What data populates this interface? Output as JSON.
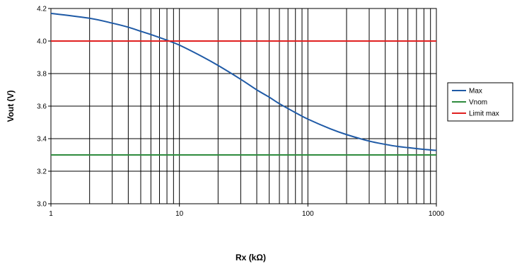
{
  "chart_data": {
    "type": "line",
    "xlabel": "Rx (kΩ)",
    "ylabel": "Vout (V)",
    "xscale": "log",
    "xlim": [
      1,
      1000
    ],
    "ylim": [
      3.0,
      4.2
    ],
    "x_ticks": [
      "1",
      "10",
      "100",
      "1000"
    ],
    "y_ticks": [
      "3.0",
      "3.2",
      "3.4",
      "3.6",
      "3.8",
      "4.0",
      "4.2"
    ],
    "grid": true,
    "legend_position": "right",
    "series": [
      {
        "name": "Max",
        "color": "#1f5aa6",
        "x": [
          1,
          2,
          3,
          4,
          5,
          6,
          8,
          10,
          15,
          20,
          30,
          40,
          50,
          60,
          80,
          100,
          150,
          200,
          300,
          400,
          500,
          600,
          800,
          1000
        ],
        "y": [
          4.17,
          4.14,
          4.11,
          4.085,
          4.06,
          4.04,
          4.005,
          3.975,
          3.905,
          3.85,
          3.765,
          3.7,
          3.655,
          3.615,
          3.56,
          3.52,
          3.46,
          3.425,
          3.385,
          3.365,
          3.352,
          3.345,
          3.334,
          3.328
        ]
      },
      {
        "name": "Vnom",
        "color": "#2e8b3e",
        "x": [
          1,
          1000
        ],
        "y": [
          3.3,
          3.3
        ]
      },
      {
        "name": "Limit max",
        "color": "#e02020",
        "x": [
          1,
          1000
        ],
        "y": [
          4.0,
          4.0
        ]
      }
    ]
  }
}
